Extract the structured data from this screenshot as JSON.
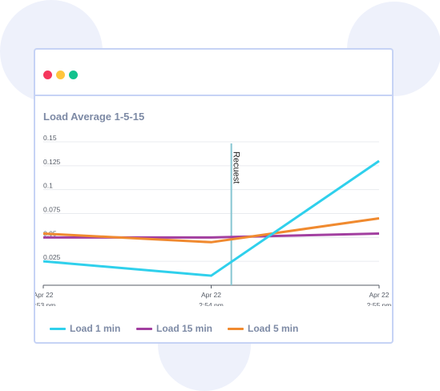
{
  "window": {
    "buttons": [
      {
        "name": "close",
        "color": "#f5365c"
      },
      {
        "name": "minimize",
        "color": "#ffc53d"
      },
      {
        "name": "maximize",
        "color": "#12c28d"
      }
    ]
  },
  "chart_title": "Load Average 1-5-15",
  "chart_data": {
    "type": "line",
    "title": "Load Average 1-5-15",
    "xlabel": "",
    "ylabel": "",
    "x": [
      "2:53 pm",
      "2:54 pm",
      "2:55 pm"
    ],
    "x_ticks": [
      {
        "line1": "Apr 22",
        "line2": "2:53 pm"
      },
      {
        "line1": "Apr 22",
        "line2": "2:54 pm"
      },
      {
        "line1": "Apr 22",
        "line2": "2:55 pm"
      }
    ],
    "y_ticks": [
      "0.15",
      "0.125",
      "0.1",
      "0.075",
      "0.05",
      "0.025"
    ],
    "ylim": [
      0,
      0.15
    ],
    "grid": true,
    "legend_position": "bottom",
    "series": [
      {
        "name": "Load 1 min",
        "color": "#2fd0ec",
        "values": [
          0.025,
          0.01,
          0.13
        ]
      },
      {
        "name": "Load 15 min",
        "color": "#a23fa0",
        "values": [
          0.05,
          0.05,
          0.054
        ]
      },
      {
        "name": "Load 5 min",
        "color": "#f08a2f",
        "values": [
          0.054,
          0.045,
          0.07
        ]
      }
    ],
    "annotations": [
      {
        "label": "Recuest",
        "x": "2:54 pm",
        "x_offset_fraction": 0.12,
        "color": "#86c6d2"
      }
    ]
  }
}
